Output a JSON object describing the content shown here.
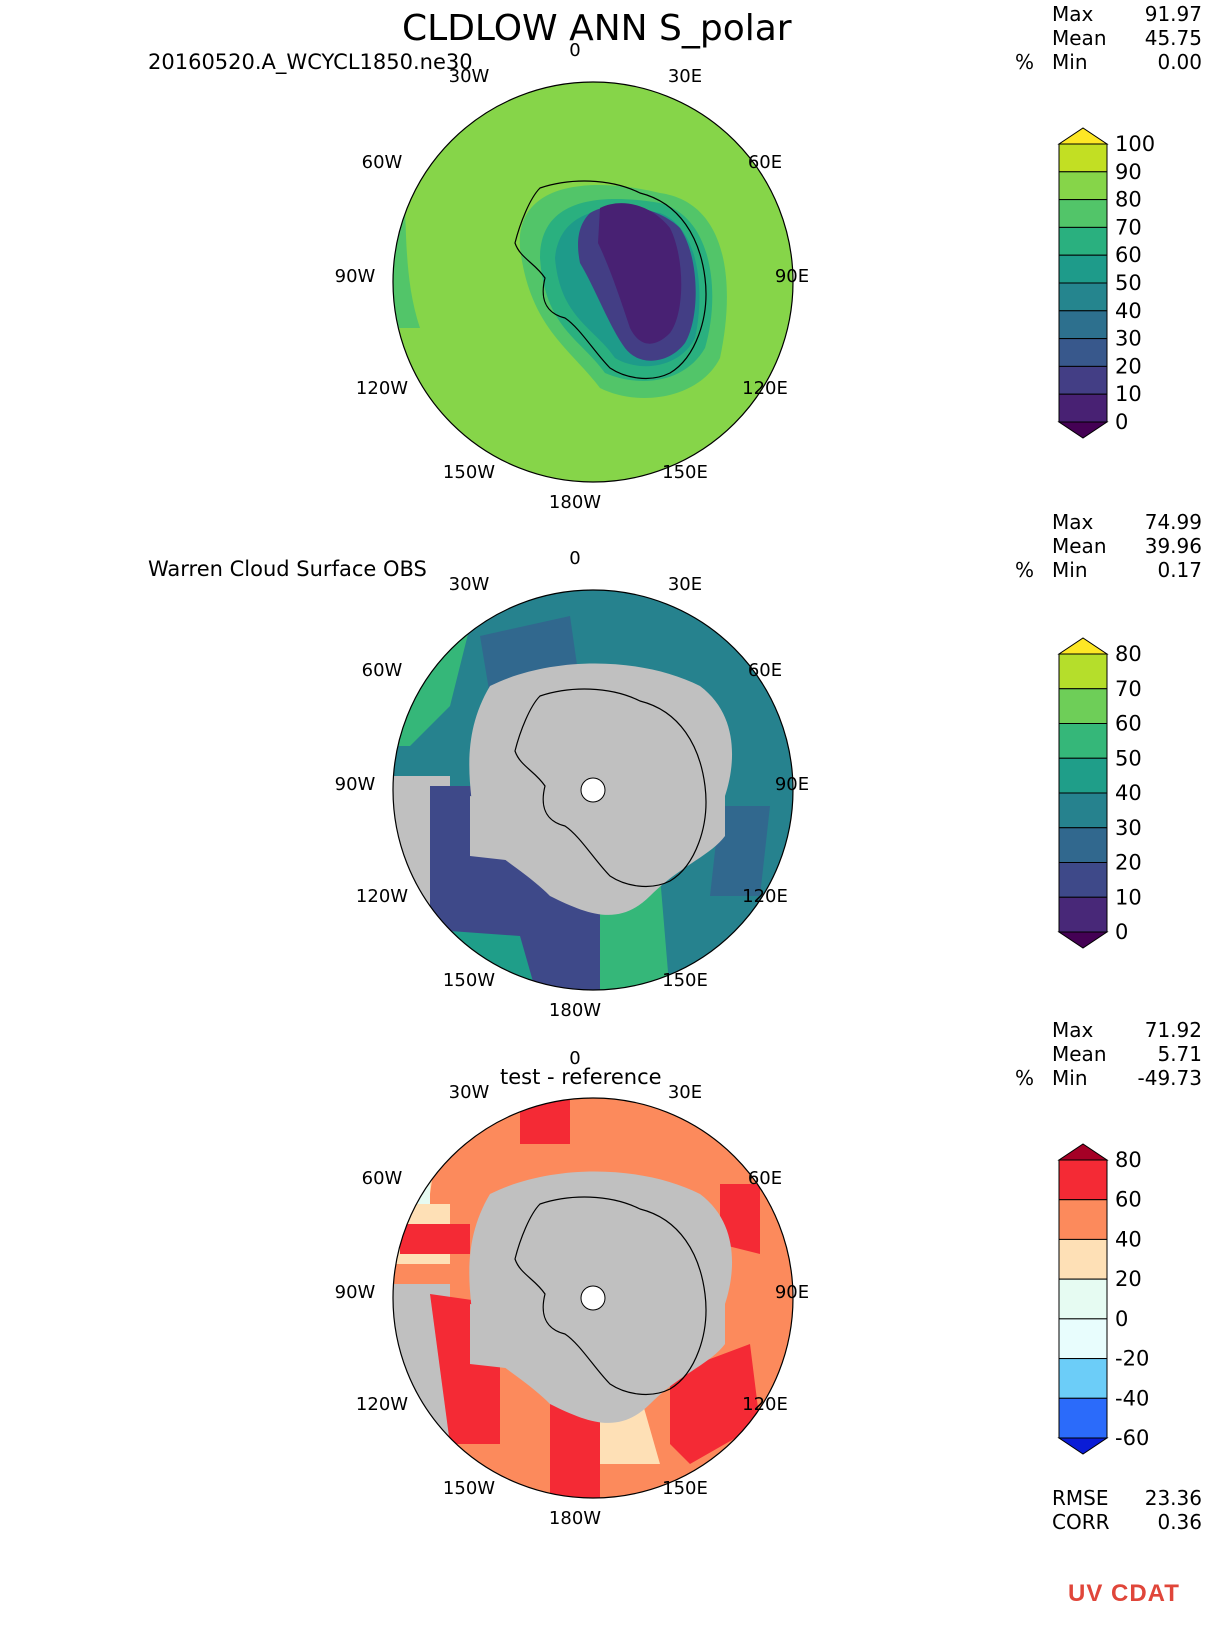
{
  "header": {
    "title": "CLDLOW ANN S_polar",
    "model_name": "20160520.A_WCYCL1850.ne30"
  },
  "lon_labels": {
    "top": "0",
    "n30w": "30W",
    "n30e": "30E",
    "w60": "60W",
    "e60": "60E",
    "w90": "90W",
    "e90": "90E",
    "w120": "120W",
    "e120": "120E",
    "w150": "150W",
    "e150": "150E",
    "bottom": "180W"
  },
  "panels": [
    {
      "subtitle": "",
      "units": "%",
      "stats": {
        "max_label": "Max",
        "max": "91.97",
        "mean_label": "Mean",
        "mean": "45.75",
        "min_label": "Min",
        "min": "0.00"
      },
      "colorbar": {
        "levels": [
          "100",
          "90",
          "80",
          "70",
          "60",
          "50",
          "40",
          "30",
          "20",
          "10",
          "0"
        ],
        "colors": [
          "#fde725",
          "#c2df23",
          "#86d549",
          "#52c569",
          "#2ab07f",
          "#1e9b8a",
          "#25858e",
          "#2d708e",
          "#38588c",
          "#433e85",
          "#482173",
          "#440154"
        ]
      }
    },
    {
      "subtitle": "Warren Cloud Surface OBS",
      "units": "%",
      "stats": {
        "max_label": "Max",
        "max": "74.99",
        "mean_label": "Mean",
        "mean": "39.96",
        "min_label": "Min",
        "min": "0.17"
      },
      "colorbar": {
        "levels": [
          "80",
          "70",
          "60",
          "50",
          "40",
          "30",
          "20",
          "10",
          "0"
        ],
        "colors": [
          "#fde725",
          "#b5de2b",
          "#6ece58",
          "#35b779",
          "#1f9e89",
          "#26828e",
          "#31688e",
          "#3e4989",
          "#482878",
          "#440154"
        ]
      }
    },
    {
      "subtitle": "test - reference",
      "units": "%",
      "stats": {
        "max_label": "Max",
        "max": "71.92",
        "mean_label": "Mean",
        "mean": "5.71",
        "min_label": "Min",
        "min": "-49.73"
      },
      "colorbar": {
        "levels": [
          "80",
          "60",
          "40",
          "20",
          "0",
          "-20",
          "-40",
          "-60"
        ],
        "colors": [
          "#a50026",
          "#f42a35",
          "#fc8a5c",
          "#fee0b6",
          "#e6fbf2",
          "#e8fdfd",
          "#6ccdf8",
          "#2b6bfa",
          "#0a1cd6"
        ]
      },
      "rmse_label": "RMSE",
      "rmse": "23.36",
      "corr_label": "CORR",
      "corr": "0.36"
    }
  ],
  "logo": {
    "text": "UV CDAT"
  }
}
